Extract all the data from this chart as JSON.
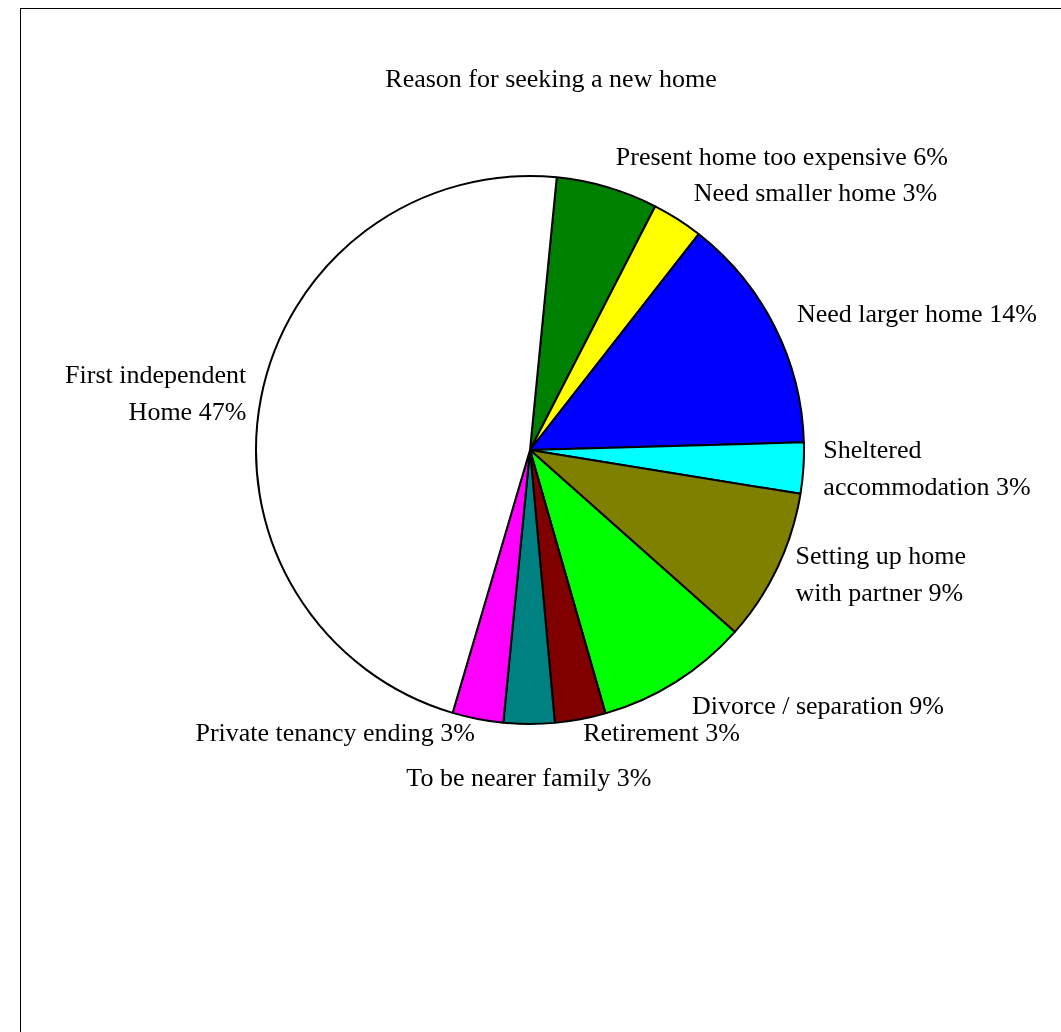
{
  "chart_data": {
    "type": "pie",
    "title": "Reason for seeking a new home",
    "categories": [
      "Present home too expensive",
      "Need smaller home",
      "Need larger home",
      "Sheltered accommodation",
      "Setting up home with partner",
      "Divorce / separation",
      "Retirement",
      "To be nearer family",
      "Private tenancy ending",
      "First independent Home"
    ],
    "values": [
      6,
      3,
      14,
      3,
      9,
      9,
      3,
      3,
      3,
      47
    ],
    "colors": [
      "#008000",
      "#ffff00",
      "#0000ff",
      "#00ffff",
      "#808000",
      "#00ff00",
      "#800000",
      "#008080",
      "#ff00ff",
      "#ffffff"
    ],
    "value_labels": [
      "6%",
      "3%",
      "14%",
      "3%",
      "9%",
      "9%",
      "3%",
      "3%",
      "3%",
      "47%"
    ],
    "legend": false
  }
}
